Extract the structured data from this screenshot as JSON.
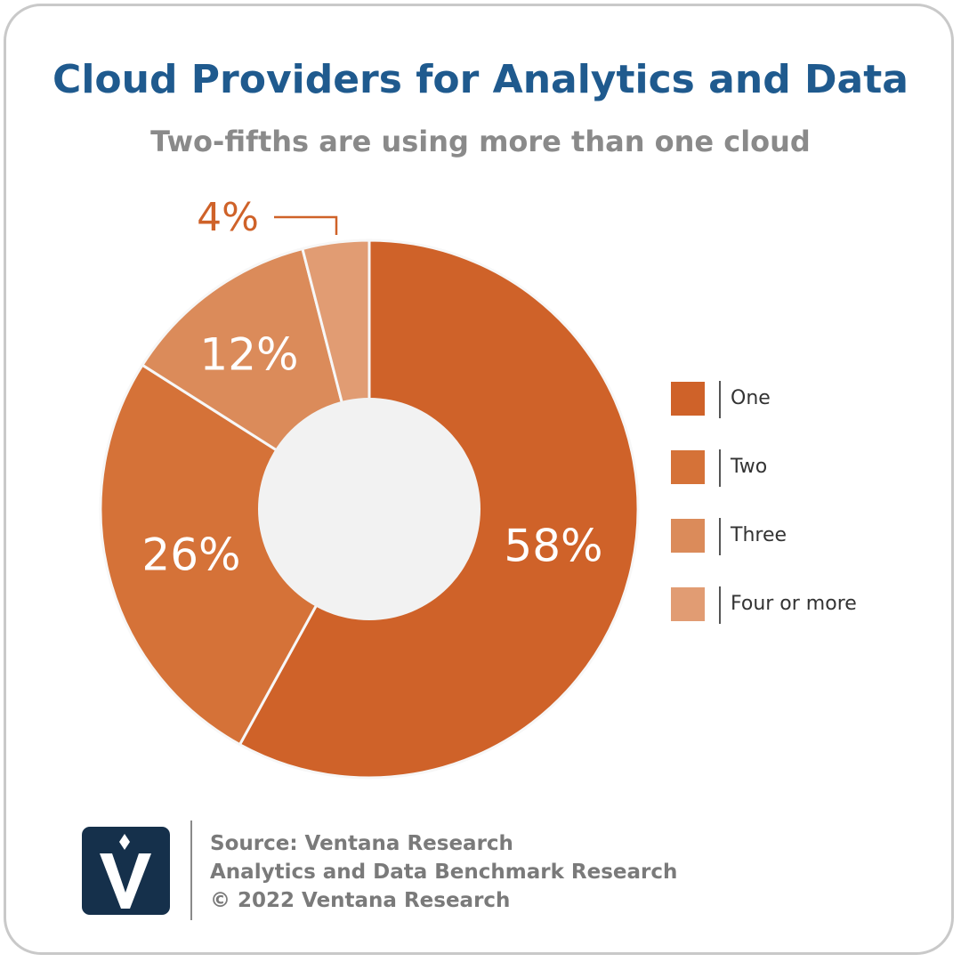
{
  "header": {
    "title": "Cloud Providers for Analytics and Data",
    "subtitle": "Two-fifths are using more than one cloud"
  },
  "chart_data": {
    "type": "pie",
    "title": "Cloud Providers for Analytics and Data",
    "subtitle": "Two-fifths are using more than one cloud",
    "categories": [
      "One",
      "Two",
      "Three",
      "Four or more"
    ],
    "values": [
      58,
      26,
      12,
      4
    ],
    "labels": [
      "58%",
      "26%",
      "12%",
      "4%"
    ],
    "colors": [
      "#cf6229",
      "#d57238",
      "#db8b5a",
      "#e19c73"
    ],
    "legend_position": "right",
    "donut": true
  },
  "legend": {
    "items": [
      {
        "label": "One",
        "color": "#cf6229"
      },
      {
        "label": "Two",
        "color": "#d57238"
      },
      {
        "label": "Three",
        "color": "#db8b5a"
      },
      {
        "label": "Four or more",
        "color": "#e19c73"
      }
    ]
  },
  "footer": {
    "source": "Source: Ventana Research",
    "study": "Analytics and Data Benchmark Research",
    "copyright": "© 2022 Ventana Research"
  },
  "colors": {
    "title": "#1f5a8e",
    "subtitle": "#8a8a8a",
    "hole": "#f2f2f2",
    "logo_bg": "#15304b",
    "outside_label": "#cf6229"
  },
  "logo": {
    "icon": "ventana-v-logo-icon"
  }
}
